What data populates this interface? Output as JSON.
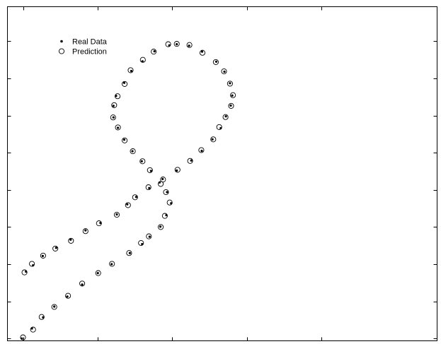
{
  "chart_data": {
    "type": "scatter",
    "title": "",
    "xlabel": "",
    "ylabel": "",
    "tick_labels_shown": false,
    "xlim": [
      -2.0,
      8.0
    ],
    "ylim": [
      -2.0,
      7.0
    ],
    "legend": {
      "placement": "top-left"
    },
    "series": [
      {
        "name": "Real Data",
        "marker": "dot",
        "color": "#000000",
        "x": [
          -0.04,
          0.23,
          0.53,
          0.83,
          1.18,
          1.58,
          2.0,
          2.37,
          2.86,
          3.19,
          3.39,
          3.68,
          3.84,
          3.97,
          3.86,
          3.66,
          3.43,
          3.18,
          2.93,
          2.71,
          2.54,
          2.42,
          2.42,
          2.49,
          2.71,
          2.9,
          3.2,
          3.52,
          3.92,
          4.12,
          4.45,
          4.8,
          5.18,
          5.4,
          5.55,
          5.61,
          5.57,
          5.44,
          5.3,
          5.08,
          4.79,
          4.51,
          4.12,
          3.74,
          3.38,
          3.03,
          2.79,
          2.51,
          2.07,
          1.67,
          1.27,
          0.88,
          0.52,
          0.26,
          0.07
        ],
        "y": [
          -2.0,
          -1.73,
          -1.43,
          -1.14,
          -0.87,
          -0.55,
          -0.24,
          0.0,
          0.3,
          0.54,
          0.74,
          1.01,
          1.32,
          1.64,
          1.94,
          2.2,
          2.51,
          2.77,
          3.04,
          3.35,
          3.67,
          3.95,
          4.26,
          4.53,
          4.88,
          5.2,
          5.46,
          5.73,
          5.89,
          5.92,
          5.88,
          5.72,
          5.45,
          5.18,
          4.87,
          4.54,
          4.27,
          3.98,
          3.66,
          3.36,
          3.05,
          2.79,
          2.52,
          2.29,
          2.05,
          1.81,
          1.61,
          1.34,
          1.11,
          0.91,
          0.66,
          0.44,
          0.22,
          -0.03,
          -0.2
        ]
      },
      {
        "name": "Prediction",
        "marker": "open-circle",
        "color": "#000000",
        "x": [
          -0.01,
          0.26,
          0.49,
          0.83,
          1.2,
          1.58,
          2.01,
          2.38,
          2.84,
          3.16,
          3.37,
          3.69,
          3.8,
          3.93,
          3.83,
          3.69,
          3.4,
          3.2,
          2.94,
          2.72,
          2.54,
          2.41,
          2.44,
          2.53,
          2.72,
          2.88,
          3.21,
          3.5,
          3.89,
          4.12,
          4.46,
          4.81,
          5.17,
          5.39,
          5.55,
          5.63,
          5.58,
          5.43,
          5.26,
          5.1,
          4.78,
          4.48,
          4.14,
          3.75,
          3.36,
          3.0,
          2.81,
          2.51,
          2.03,
          1.67,
          1.28,
          0.86,
          0.53,
          0.23,
          0.03
        ],
        "y": [
          -1.97,
          -1.76,
          -1.42,
          -1.15,
          -0.85,
          -0.52,
          -0.24,
          0.01,
          0.3,
          0.57,
          0.75,
          1.0,
          1.3,
          1.66,
          1.94,
          2.16,
          2.53,
          2.77,
          3.04,
          3.33,
          3.68,
          3.95,
          4.28,
          4.52,
          4.85,
          5.22,
          5.5,
          5.72,
          5.92,
          5.93,
          5.9,
          5.69,
          5.44,
          5.19,
          4.86,
          4.55,
          4.26,
          3.96,
          3.69,
          3.36,
          3.07,
          2.78,
          2.54,
          2.28,
          2.07,
          1.8,
          1.59,
          1.33,
          1.1,
          0.89,
          0.63,
          0.42,
          0.23,
          0.01,
          -0.22
        ]
      }
    ]
  }
}
